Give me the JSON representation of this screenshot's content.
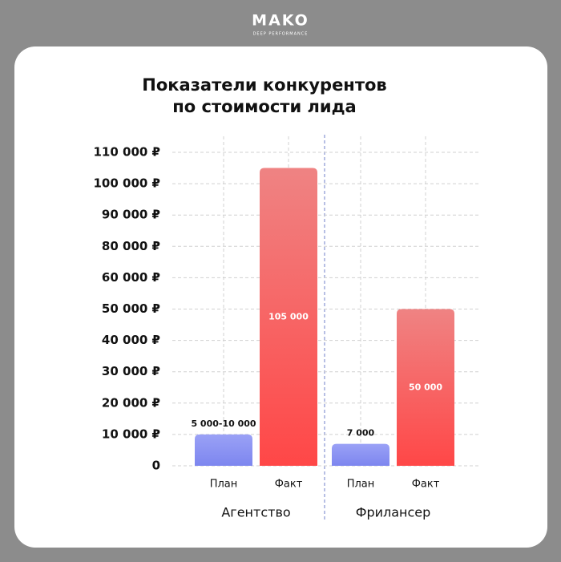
{
  "brand": {
    "name": "MAKO",
    "tagline": "DEEP PERFORMANCE"
  },
  "chart_data": {
    "type": "bar",
    "title": [
      "Показатели конкурентов",
      "по стоимости лида"
    ],
    "ylim": [
      0,
      110000
    ],
    "yticks": [
      0,
      {
        "value": 10000,
        "label": "10 000 ₽"
      },
      {
        "value": 20000,
        "label": "20 000 ₽"
      },
      {
        "value": 30000,
        "label": "30 000 ₽"
      },
      {
        "value": 40000,
        "label": "40 000 ₽"
      },
      {
        "value": 50000,
        "label": "50 000 ₽"
      },
      {
        "value": 60000,
        "label": "60 000 ₽"
      },
      {
        "value": 80000,
        "label": "80 000 ₽"
      },
      {
        "value": 90000,
        "label": "90 000 ₽"
      },
      {
        "value": 100000,
        "label": "100 000 ₽"
      },
      {
        "value": 110000,
        "label": "110 000 ₽"
      }
    ],
    "grid": true,
    "colors": [
      [
        "#9aa1f6",
        "#7d86ef"
      ],
      [
        "#ef8383",
        "#ff4747"
      ]
    ],
    "groups": [
      {
        "name": "Агентство",
        "categories": [
          "План",
          "Факт"
        ],
        "values": [
          10000,
          105000
        ],
        "value_labels": [
          "5 000-10 000",
          "105 000"
        ]
      },
      {
        "name": "Фрилансер",
        "categories": [
          "План",
          "Факт"
        ],
        "values": [
          7000,
          50000
        ],
        "value_labels": [
          "7 000",
          "50 000"
        ]
      }
    ]
  }
}
